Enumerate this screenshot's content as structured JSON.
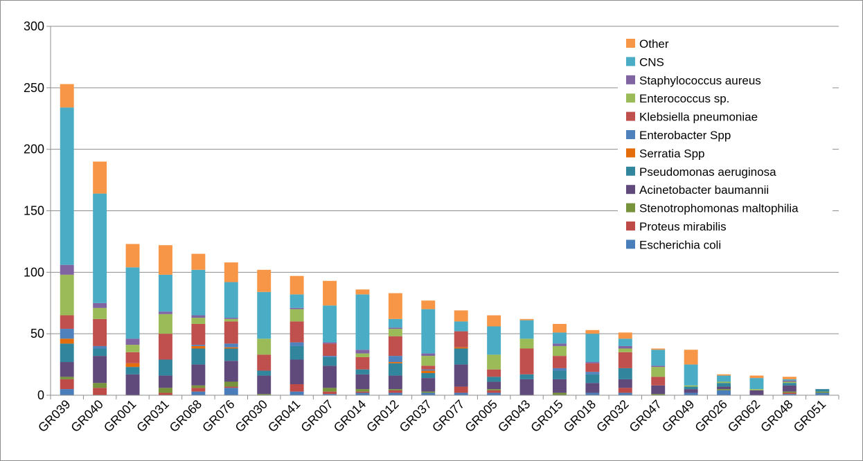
{
  "chart_data": {
    "type": "bar",
    "stacked": true,
    "title": "",
    "xlabel": "",
    "ylabel": "",
    "ylim": [
      0,
      300
    ],
    "yticks": [
      0,
      50,
      100,
      150,
      200,
      250,
      300
    ],
    "grid": true,
    "legend_position": "top-right",
    "categories": [
      "GR039",
      "GR040",
      "GR001",
      "GR031",
      "GR068",
      "GR076",
      "GR030",
      "GR041",
      "GR007",
      "GR014",
      "GR012",
      "GR037",
      "GR077",
      "GR005",
      "GR043",
      "GR015",
      "GR018",
      "GR032",
      "GR047",
      "GR049",
      "GR026",
      "GR062",
      "GR048",
      "GR051"
    ],
    "series": [
      {
        "name": "Escherichia coli",
        "color": "#4a7ebb",
        "values": [
          5,
          0,
          0,
          0,
          3,
          6,
          0,
          3,
          1,
          2,
          2,
          2,
          2,
          2,
          0,
          0,
          2,
          2,
          0,
          2,
          4,
          0,
          1,
          2
        ]
      },
      {
        "name": "Proteus mirabilis",
        "color": "#be4b48",
        "values": [
          8,
          6,
          0,
          2,
          3,
          1,
          0,
          6,
          2,
          1,
          2,
          0,
          5,
          2,
          0,
          0,
          0,
          4,
          0,
          0,
          0,
          0,
          1,
          0
        ]
      },
      {
        "name": "Stenotrophomonas maltophilia",
        "color": "#77933c",
        "values": [
          2,
          4,
          0,
          4,
          2,
          4,
          1,
          0,
          3,
          2,
          1,
          1,
          0,
          1,
          0,
          2,
          0,
          0,
          1,
          0,
          1,
          0,
          1,
          1
        ]
      },
      {
        "name": "Acinetobacter baumannii",
        "color": "#604a7b",
        "values": [
          12,
          22,
          17,
          10,
          17,
          17,
          15,
          20,
          18,
          12,
          11,
          11,
          18,
          6,
          13,
          11,
          8,
          7,
          7,
          3,
          2,
          4,
          5,
          0
        ]
      },
      {
        "name": "Pseudomonas aeruginosa",
        "color": "#31859c",
        "values": [
          15,
          6,
          6,
          13,
          13,
          10,
          4,
          11,
          7,
          4,
          10,
          4,
          13,
          4,
          4,
          7,
          7,
          9,
          0,
          2,
          3,
          0,
          2,
          2
        ]
      },
      {
        "name": "Serratia Spp",
        "color": "#e46c0a",
        "values": [
          4,
          0,
          3,
          0,
          2,
          1,
          0,
          0,
          0,
          0,
          1,
          2,
          1,
          0,
          0,
          0,
          0,
          0,
          0,
          0,
          0,
          0,
          0,
          0
        ]
      },
      {
        "name": "Enterobacter Spp",
        "color": "#4f81bd",
        "values": [
          8,
          2,
          0,
          0,
          1,
          3,
          0,
          3,
          1,
          0,
          5,
          1,
          0,
          0,
          0,
          2,
          2,
          0,
          0,
          0,
          0,
          0,
          0,
          0
        ]
      },
      {
        "name": "Klebsiella pneumoniae",
        "color": "#c0504d",
        "values": [
          11,
          22,
          9,
          21,
          17,
          18,
          13,
          17,
          10,
          10,
          16,
          3,
          13,
          6,
          21,
          10,
          7,
          13,
          7,
          0,
          0,
          0,
          0,
          0
        ]
      },
      {
        "name": "Enterococcus sp.",
        "color": "#9bbb59",
        "values": [
          33,
          9,
          6,
          16,
          5,
          2,
          13,
          10,
          0,
          3,
          6,
          8,
          0,
          12,
          8,
          8,
          0,
          3,
          8,
          1,
          1,
          1,
          1,
          0
        ]
      },
      {
        "name": "Staphylococcus aureus",
        "color": "#8064a2",
        "values": [
          8,
          4,
          5,
          2,
          2,
          1,
          0,
          1,
          1,
          3,
          1,
          2,
          0,
          0,
          0,
          2,
          1,
          2,
          1,
          0,
          0,
          0,
          1,
          0
        ]
      },
      {
        "name": "CNS",
        "color": "#4bacc6",
        "values": [
          128,
          89,
          58,
          30,
          37,
          29,
          38,
          11,
          30,
          45,
          7,
          36,
          8,
          23,
          15,
          9,
          23,
          6,
          13,
          17,
          5,
          9,
          1,
          0
        ]
      },
      {
        "name": "Other",
        "color": "#f79646",
        "values": [
          19,
          26,
          19,
          24,
          13,
          16,
          18,
          15,
          20,
          4,
          21,
          7,
          9,
          9,
          1,
          7,
          3,
          5,
          1,
          12,
          1,
          2,
          2,
          0
        ]
      }
    ]
  }
}
